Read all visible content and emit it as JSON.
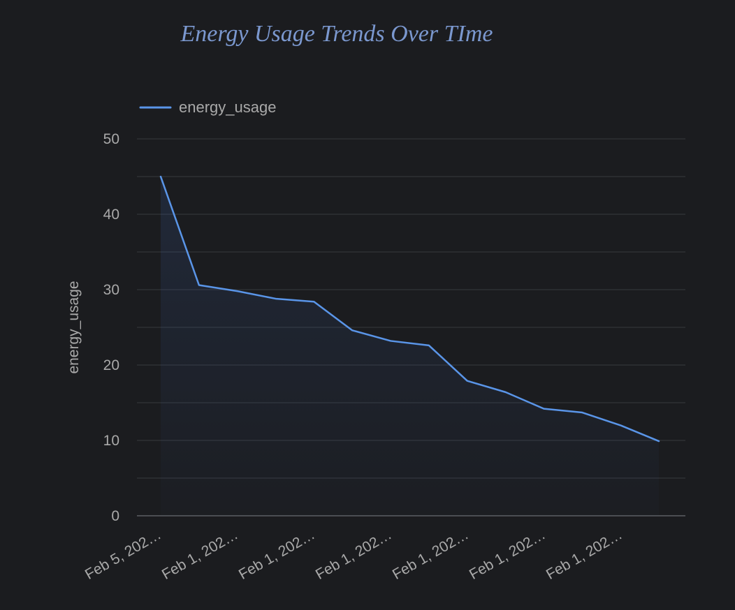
{
  "chart_data": {
    "type": "area",
    "title": "Energy Usage Trends Over TIme",
    "xlabel": "",
    "ylabel": "energy_usage",
    "x_tick_labels": [
      "Feb 5, 202…",
      "Feb 1, 202…",
      "Feb 1, 202…",
      "Feb 1, 202…",
      "Feb 1, 202…",
      "Feb 1, 202…",
      "Feb 1, 202…"
    ],
    "y_ticks": [
      0,
      10,
      20,
      30,
      40,
      50
    ],
    "ylim": [
      0,
      50
    ],
    "grid": true,
    "legend_position": "top-left",
    "series": [
      {
        "name": "energy_usage",
        "color": "#5a95e8",
        "values": [
          45,
          30.6,
          29.8,
          28.8,
          28.4,
          24.6,
          23.2,
          22.6,
          17.9,
          16.4,
          14.2,
          13.7,
          12,
          9.9
        ]
      }
    ]
  }
}
